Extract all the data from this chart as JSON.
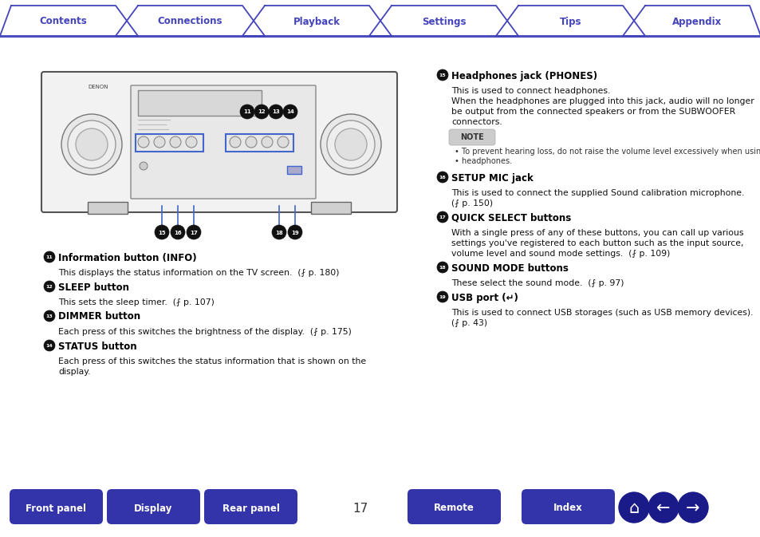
{
  "title_tabs": [
    "Contents",
    "Connections",
    "Playback",
    "Settings",
    "Tips",
    "Appendix"
  ],
  "bottom_buttons": [
    "Front panel",
    "Display",
    "Rear panel",
    "Remote",
    "Index"
  ],
  "page_number": "17",
  "tab_color": "#4444bb",
  "tab_text_color": "#4444bb",
  "bottom_btn_color": "#3333aa",
  "bottom_btn_text_color": "#ffffff",
  "nav_btn_color": "#1a1a88",
  "bg_color": "#ffffff",
  "note_bg": "#cccccc",
  "body_text_color": "#111111",
  "heading_color": "#000000",
  "left_column": {
    "items": [
      {
        "number": "11",
        "title": "Information button (INFO)",
        "text": "This displays the status information on the TV screen.  (⨏ p. 180)"
      },
      {
        "number": "12",
        "title": "SLEEP button",
        "text": "This sets the sleep timer.  (⨏ p. 107)"
      },
      {
        "number": "13",
        "title": "DIMMER button",
        "text": "Each press of this switches the brightness of the display.  (⨏ p. 175)"
      },
      {
        "number": "14",
        "title": "STATUS button",
        "text_lines": [
          "Each press of this switches the status information that is shown on the",
          "display."
        ]
      }
    ]
  },
  "right_column": {
    "items": [
      {
        "number": "15",
        "title": "Headphones jack (PHONES)",
        "text_lines": [
          "This is used to connect headphones.",
          "When the headphones are plugged into this jack, audio will no longer",
          "be output from the connected speakers or from the SUBWOOFER",
          "connectors."
        ],
        "note": [
          "To prevent hearing loss, do not raise the volume level excessively when using",
          "headphones."
        ]
      },
      {
        "number": "16",
        "title": "SETUP MIC jack",
        "text_lines": [
          "This is used to connect the supplied Sound calibration microphone.",
          "(⨏ p. 150)"
        ]
      },
      {
        "number": "17",
        "title": "QUICK SELECT buttons",
        "text_lines": [
          "With a single press of any of these buttons, you can call up various",
          "settings you've registered to each button such as the input source,",
          "volume level and sound mode settings.  (⨏ p. 109)"
        ]
      },
      {
        "number": "18",
        "title": "SOUND MODE buttons",
        "text_lines": [
          "These select the sound mode.  (⨏ p. 97)"
        ]
      },
      {
        "number": "19",
        "title": "USB port (↵)",
        "text_lines": [
          "This is used to connect USB storages (such as USB memory devices).",
          "(⨏ p. 43)"
        ]
      }
    ]
  }
}
